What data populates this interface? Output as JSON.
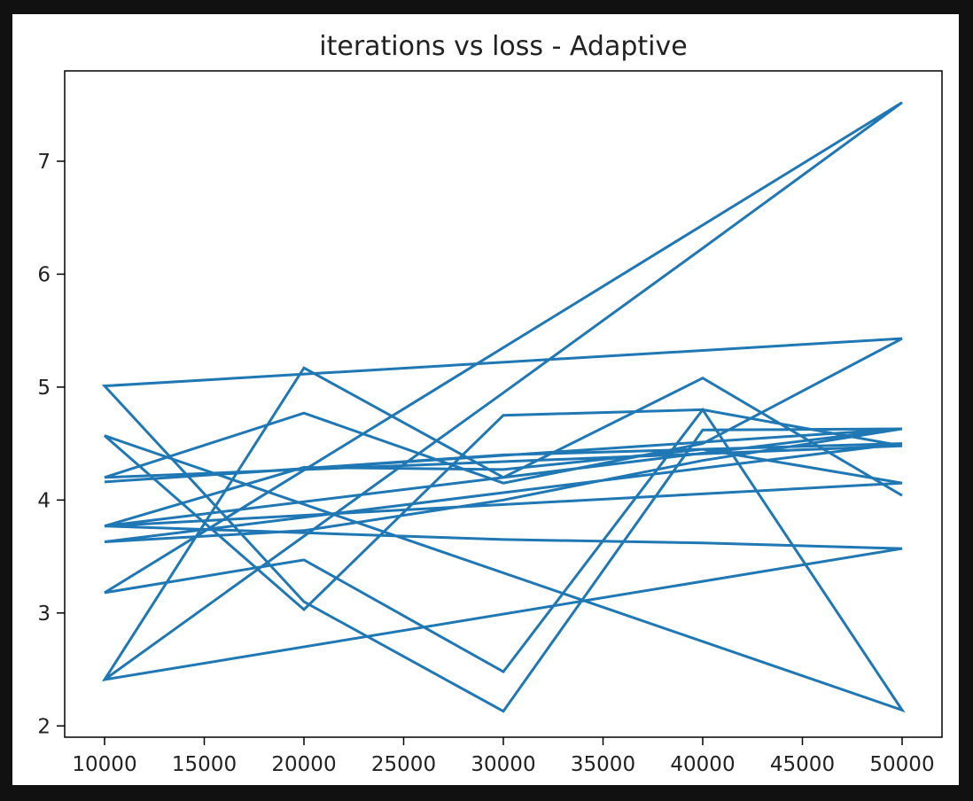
{
  "chart_data": {
    "type": "line",
    "title": "iterations vs loss - Adaptive",
    "xlabel": "",
    "ylabel": "",
    "xlim": [
      8000,
      52000
    ],
    "ylim": [
      1.9,
      7.8
    ],
    "xticks": [
      10000,
      15000,
      20000,
      25000,
      30000,
      35000,
      40000,
      45000,
      50000
    ],
    "yticks": [
      2,
      3,
      4,
      5,
      6,
      7
    ],
    "grid": false,
    "legend": "none",
    "color": "#1f77b4",
    "x": [
      10000,
      20000,
      30000,
      40000,
      50000,
      10000,
      20000,
      30000,
      40000,
      50000,
      10000,
      20000,
      30000,
      40000,
      50000,
      10000,
      20000,
      30000,
      40000,
      50000,
      10000,
      20000,
      30000,
      40000,
      50000,
      10000,
      20000,
      30000,
      40000,
      50000,
      10000,
      20000,
      30000,
      40000,
      50000,
      10000,
      20000,
      30000,
      40000,
      50000,
      10000,
      20000,
      30000,
      40000,
      50000,
      10000,
      20000,
      30000,
      40000,
      50000
    ],
    "y": [
      2.41,
      3.68,
      4.95,
      6.23,
      7.52,
      3.18,
      3.47,
      2.48,
      4.8,
      2.14,
      4.57,
      3.03,
      4.75,
      4.8,
      4.48,
      4.2,
      4.77,
      4.15,
      4.5,
      5.43,
      5.01,
      3.1,
      2.13,
      4.62,
      4.63,
      3.77,
      4.29,
      4.27,
      4.45,
      4.5,
      3.63,
      3.73,
      4.0,
      4.35,
      4.63,
      4.16,
      4.28,
      4.4,
      4.45,
      4.15,
      3.77,
      3.71,
      3.65,
      3.62,
      3.57,
      2.41,
      5.17,
      4.2,
      5.08,
      4.04
    ]
  }
}
